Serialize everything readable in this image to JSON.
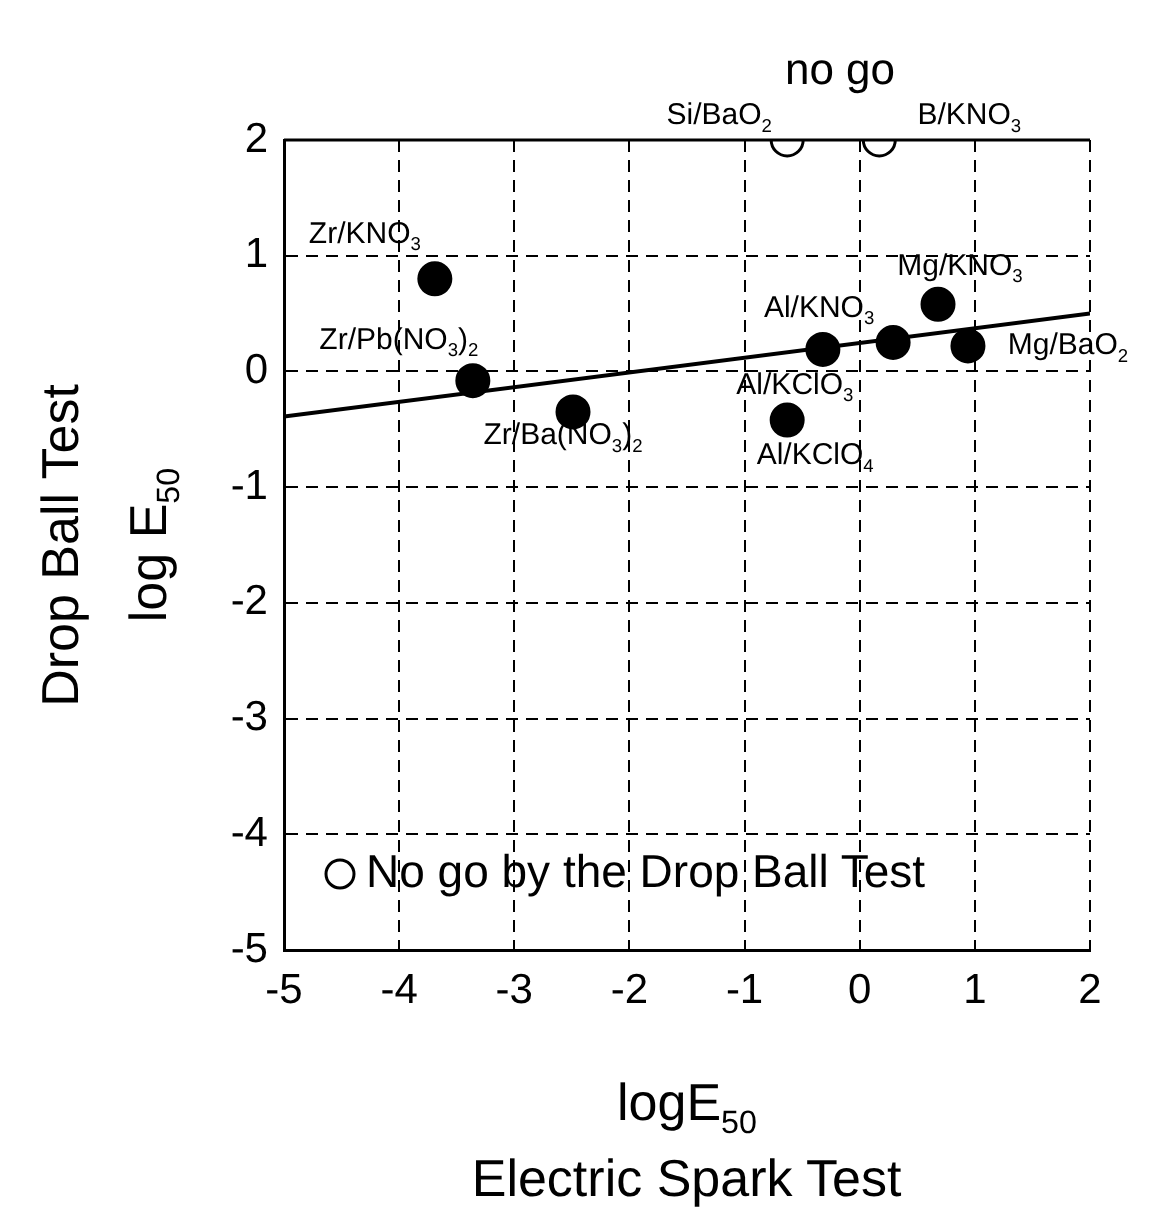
{
  "chart_data": {
    "type": "scatter",
    "xlabel": "logE$_{50}$\nElectric Spark Test",
    "ylabel": "Drop Ball Test\nlog E$_{50}$",
    "xlim": [
      -5,
      2
    ],
    "xticks": [
      -5,
      -4,
      -3,
      -2,
      -1,
      0,
      1,
      2
    ],
    "ylim": [
      -5,
      2
    ],
    "yticks": [
      -5,
      -4,
      -3,
      -2,
      -1,
      0,
      1,
      2
    ],
    "grid": true,
    "legend": "bottom left",
    "marker": "circle",
    "series": [
      {
        "type": "scatter",
        "color": "#000000",
        "x": [
          -3.69,
          -3.36,
          -2.49,
          -0.63,
          -0.32,
          0.29,
          0.68,
          0.94
        ],
        "values": [
          0.8,
          -0.08,
          -0.35,
          -0.42,
          0.19,
          0.25,
          0.58,
          0.22
        ]
      },
      {
        "type": "scatter",
        "name": "No go by the Drop Ball Test",
        "color": "#ffffff",
        "x": [
          -0.63,
          0.17
        ],
        "values": [
          2,
          2
        ]
      },
      {
        "type": "line",
        "color": "#000000",
        "line_style": "solid",
        "marker": "none",
        "x": [
          -5,
          2
        ],
        "values": [
          -0.39,
          0.5
        ]
      }
    ],
    "annotations": [
      {
        "text": "Zr/KNO$_{3}$",
        "x": -3.69,
        "y": 0.8
      },
      {
        "text": "Zr/Pb(NO$_{3}$)$_{2}$",
        "x": -3.36,
        "y": -0.08
      },
      {
        "text": "Zr/Ba(NO$_{3}$)$_{2}$",
        "x": -2.49,
        "y": -0.35
      },
      {
        "text": "Al/KClO$_{4}$",
        "x": -0.63,
        "y": -0.42
      },
      {
        "text": "Al/KClO$_{3}$",
        "x": -0.32,
        "y": 0.19
      },
      {
        "text": "Al/KNO$_{3}$",
        "x": 0.29,
        "y": 0.25
      },
      {
        "text": "Mg/KNO$_{3}$",
        "x": 0.68,
        "y": 0.58
      },
      {
        "text": "Mg/BaO$_{2}$",
        "x": 0.94,
        "y": 0.22
      },
      {
        "text": "Si/BaO$_{2}$",
        "x": -0.63,
        "y": 2
      },
      {
        "text": "B/KNO$_{3}$",
        "x": 0.17,
        "y": 2
      },
      "no go"
    ]
  }
}
